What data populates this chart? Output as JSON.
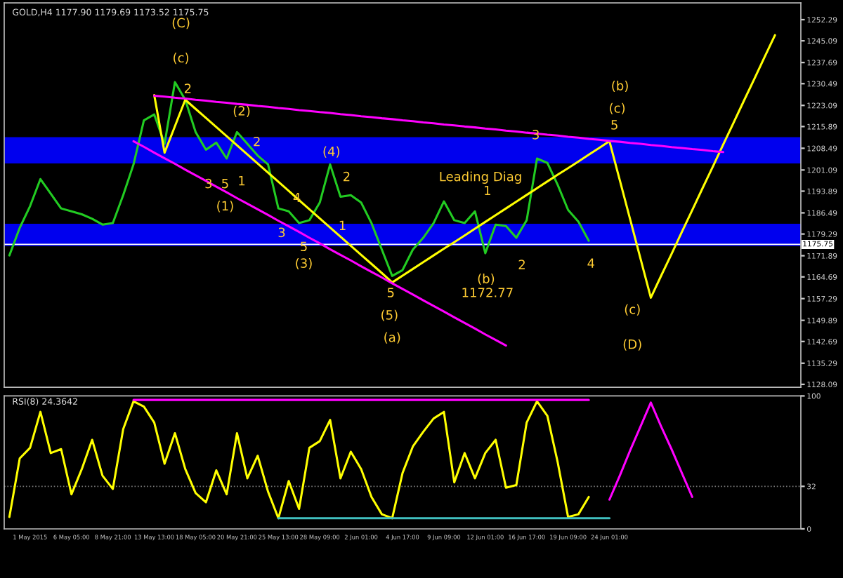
{
  "chart_data": [
    {
      "type": "line",
      "title": "GOLD,H4 1177.90 1179.69 1173.52 1175.75",
      "ylim": [
        1127.1,
        1258
      ],
      "tick_labels": "y",
      "yticks": [
        1128.09,
        1135.29,
        1142.69,
        1149.89,
        1157.29,
        1164.69,
        1171.89,
        1179.29,
        1186.49,
        1193.89,
        1201.09,
        1208.49,
        1215.89,
        1223.09,
        1230.49,
        1237.69,
        1245.09,
        1252.29
      ],
      "categories": [
        null,
        null,
        null,
        null,
        null,
        null,
        null,
        null,
        null,
        null,
        null,
        null,
        null,
        null,
        null,
        null,
        null,
        null,
        null,
        null,
        null,
        null,
        null,
        null,
        null,
        null,
        null,
        null,
        null,
        null,
        null,
        null,
        null,
        null,
        null,
        null,
        null,
        null,
        null,
        null,
        null,
        null,
        null,
        null,
        null,
        null,
        null,
        null,
        null,
        null,
        null,
        null,
        null,
        null,
        null,
        null,
        null,
        null,
        null,
        null,
        null,
        null,
        null,
        null,
        null,
        null,
        null,
        null,
        null,
        null,
        null,
        null,
        null,
        null,
        null,
        null,
        null
      ],
      "series": [
        {
          "color": "#22cc22",
          "values": [
            1172,
            1181.4,
            1188.8,
            1198,
            1193,
            1188,
            1187,
            1186,
            1184.5,
            1182.5,
            1183,
            1192.5,
            1203,
            1218,
            1220,
            1210,
            1231,
            1225,
            1214,
            1208,
            1210.4,
            1205,
            1214,
            1210,
            1206,
            1203,
            1188,
            1187,
            1183,
            1184,
            1190,
            1203,
            1192,
            1192.5,
            1190,
            1183,
            1174,
            1165,
            1167,
            1174,
            1178,
            1183,
            1190.4,
            1184,
            1183,
            1187,
            1172.77,
            1182.5,
            1182,
            1178,
            1184,
            1205,
            1203.5,
            1196,
            1187.5,
            1183.5,
            1177,
            null,
            null,
            null,
            null,
            null,
            null,
            null,
            null,
            null,
            null,
            null,
            null,
            null,
            null,
            null,
            null,
            null,
            null,
            null,
            null
          ]
        },
        {
          "color": "#ffff00",
          "values": [
            null,
            null,
            null,
            null,
            null,
            null,
            null,
            null,
            null,
            null,
            null,
            null,
            null,
            null,
            1226.6,
            1207,
            1216,
            1225,
            1221.9,
            1218.8,
            1215.7,
            1212.6,
            1209.5,
            1206.4,
            1203.3,
            1200.2,
            1197.1,
            1194,
            1190.8,
            1187.7,
            1184.6,
            1181.5,
            1178.4,
            1175.3,
            1172.2,
            1169.1,
            1166,
            1162.8,
            1165.1,
            1167.4,
            1169.7,
            1172,
            1174.3,
            1176.5,
            1178.8,
            1181.1,
            1183.4,
            1185.7,
            1188,
            1190.3,
            1192.6,
            1194.9,
            1197.2,
            1199.5,
            1201.7,
            1204,
            1206.3,
            1208.6,
            1210.9,
            1197.6,
            1184.3,
            1170.9,
            1157.6,
            1165.1,
            1172.5,
            1180,
            1187.4,
            1194.9,
            1202.3,
            1209.8,
            1217.2,
            1224.7,
            1232.1,
            1239.6,
            1247,
            null,
            null
          ]
        },
        {
          "color": "#ff00ff",
          "values": [
            null,
            null,
            null,
            null,
            null,
            null,
            null,
            null,
            null,
            null,
            null,
            null,
            null,
            null,
            1226.4,
            1226.1,
            1225.7,
            1225.4,
            1225,
            1224.7,
            1224.3,
            1224,
            1223.6,
            1223.3,
            1222.9,
            1222.6,
            1222.2,
            1221.9,
            1221.5,
            1221.2,
            1220.8,
            1220.5,
            1220.1,
            1219.8,
            1219.4,
            1219.1,
            1218.7,
            1218.4,
            1218,
            1217.7,
            1217.3,
            1217,
            1216.6,
            1216.3,
            1215.9,
            1215.6,
            1215.2,
            1214.9,
            1214.5,
            1214.2,
            1213.8,
            1213.5,
            1213.1,
            1212.8,
            1212.4,
            1212.1,
            1211.7,
            1211.4,
            1211,
            1210.7,
            1210.3,
            1210,
            1209.6,
            1209.3,
            1208.9,
            1208.6,
            1208.2,
            1207.9,
            1207.5,
            1207.2,
            null,
            null,
            null,
            null,
            null,
            null,
            null
          ]
        },
        {
          "color": "#ff00ff",
          "values": [
            null,
            null,
            null,
            null,
            null,
            null,
            null,
            null,
            null,
            null,
            null,
            null,
            1210.9,
            1209,
            1207,
            1205.1,
            1203.2,
            1201.2,
            1199.3,
            1197.4,
            1195.4,
            1193.5,
            1191.5,
            1189.6,
            1187.7,
            1185.8,
            1183.8,
            1181.9,
            1180,
            1178,
            1176.1,
            1174.1,
            1172.2,
            1170.3,
            1168.3,
            1166.4,
            1164.5,
            1162.5,
            1160.6,
            1158.7,
            1156.7,
            1154.8,
            1152.9,
            1150.9,
            1149,
            1147.1,
            1145.1,
            1143.2,
            1141.3,
            null,
            null,
            null,
            null,
            null,
            null,
            null,
            null,
            null,
            null,
            null,
            null,
            null,
            null,
            null,
            null,
            null,
            null,
            null,
            null,
            null,
            null,
            null,
            null,
            null,
            null,
            null,
            null
          ]
        }
      ],
      "bands": [
        {
          "axis": "y",
          "from": 1203.3,
          "to": 1212.3,
          "color": "#0000ee"
        },
        {
          "axis": "y",
          "from": 1175.2,
          "to": 1182.8,
          "color": "#0000ee"
        }
      ],
      "ref_lines": [
        {
          "axis": "y",
          "value": 1175.75,
          "label": "1175.75",
          "color": "#ffffff"
        }
      ],
      "annotations": [
        "(C)",
        "(c)",
        "2",
        "(2)",
        "(1)",
        "3",
        "5",
        "1",
        "2",
        "4",
        "3",
        "5",
        "(3)",
        "(4)",
        "1",
        "2",
        "5",
        "(5)",
        "(a)",
        "Leading Diag",
        "1",
        "(b)",
        "1172.77",
        "2",
        "3",
        "4",
        "5",
        "(c)",
        "(b)",
        "(c)",
        "(D)"
      ]
    },
    {
      "type": "line",
      "title": "RSI(8) 24.3642",
      "ylim": [
        0,
        100
      ],
      "yticks": [
        0,
        32,
        100
      ],
      "categories": [
        null,
        null,
        "1 May 2015",
        null,
        null,
        null,
        "6 May 05:00",
        null,
        null,
        null,
        "8 May 21:00",
        null,
        null,
        null,
        "13 May 13:00",
        null,
        null,
        null,
        "18 May 05:00",
        null,
        null,
        null,
        "20 May 21:00",
        null,
        null,
        null,
        "25 May 13:00",
        null,
        null,
        null,
        "28 May 09:00",
        null,
        null,
        null,
        "2 Jun 01:00",
        null,
        null,
        null,
        "4 Jun 17:00",
        null,
        null,
        null,
        "9 Jun 09:00",
        null,
        null,
        null,
        "12 Jun 01:00",
        null,
        null,
        null,
        "16 Jun 17:00",
        null,
        null,
        null,
        "19 Jun 09:00",
        null,
        null,
        null,
        "24 Jun 01:00",
        null,
        null,
        null,
        null,
        null,
        null,
        null,
        null,
        null,
        null,
        null,
        null,
        null,
        null,
        null,
        null,
        null,
        null
      ],
      "series": [
        {
          "color": "#ffff00",
          "values": [
            9,
            53,
            61,
            88,
            57,
            60,
            26,
            45,
            67,
            40,
            30,
            75,
            96,
            92,
            80,
            49,
            72,
            45,
            27,
            20,
            44,
            26,
            72,
            38,
            55,
            28,
            8,
            36,
            15,
            61,
            66,
            82,
            38,
            58,
            45,
            24,
            11,
            8,
            42,
            62,
            73,
            83,
            88,
            35,
            57,
            38,
            57,
            67,
            31,
            33,
            80,
            96,
            85,
            50,
            9,
            11,
            24,
            null,
            null,
            null,
            null,
            null,
            null,
            null,
            null,
            null,
            null,
            null,
            null,
            null,
            null,
            null,
            null,
            null,
            null,
            null,
            null
          ]
        },
        {
          "color": "#ff00ff",
          "values": [
            null,
            null,
            null,
            null,
            null,
            null,
            null,
            null,
            null,
            null,
            null,
            null,
            97,
            97,
            97,
            97,
            97,
            97,
            97,
            97,
            97,
            97,
            97,
            97,
            97,
            97,
            97,
            97,
            97,
            97,
            97,
            97,
            97,
            97,
            97,
            97,
            97,
            97,
            97,
            97,
            97,
            97,
            97,
            97,
            97,
            97,
            97,
            97,
            97,
            97,
            97,
            97,
            97,
            97,
            97,
            97,
            97,
            null,
            null,
            null,
            null,
            null,
            null,
            null,
            null,
            null,
            null,
            null,
            null,
            null,
            null,
            null,
            null,
            null,
            null,
            null,
            null
          ]
        },
        {
          "color": "#40c0c0",
          "values": [
            null,
            null,
            null,
            null,
            null,
            null,
            null,
            null,
            null,
            null,
            null,
            null,
            null,
            null,
            null,
            null,
            null,
            null,
            null,
            null,
            null,
            null,
            null,
            null,
            null,
            null,
            8,
            8,
            8,
            8,
            8,
            8,
            8,
            8,
            8,
            8,
            8,
            8,
            8,
            8,
            8,
            8,
            8,
            8,
            8,
            8,
            8,
            8,
            8,
            8,
            8,
            8,
            8,
            8,
            8,
            8,
            8,
            8,
            8,
            null,
            null,
            null,
            null,
            null,
            null,
            null,
            null,
            null,
            null,
            null,
            null,
            null,
            null,
            null,
            null,
            null,
            null
          ]
        },
        {
          "color": "#ff00ff",
          "values": [
            null,
            null,
            null,
            null,
            null,
            null,
            null,
            null,
            null,
            null,
            null,
            null,
            null,
            null,
            null,
            null,
            null,
            null,
            null,
            null,
            null,
            null,
            null,
            null,
            null,
            null,
            null,
            null,
            null,
            null,
            null,
            null,
            null,
            null,
            null,
            null,
            null,
            null,
            null,
            null,
            null,
            null,
            null,
            null,
            null,
            null,
            null,
            null,
            null,
            null,
            null,
            null,
            null,
            null,
            null,
            null,
            null,
            null,
            22,
            40,
            59,
            77,
            95,
            77,
            60,
            42,
            24,
            null,
            null,
            null,
            null,
            null,
            null,
            null,
            null,
            null,
            null
          ]
        }
      ],
      "ref_lines": [
        {
          "axis": "y",
          "value": 32,
          "color": "#777777",
          "line_style": "dotted"
        }
      ]
    }
  ]
}
